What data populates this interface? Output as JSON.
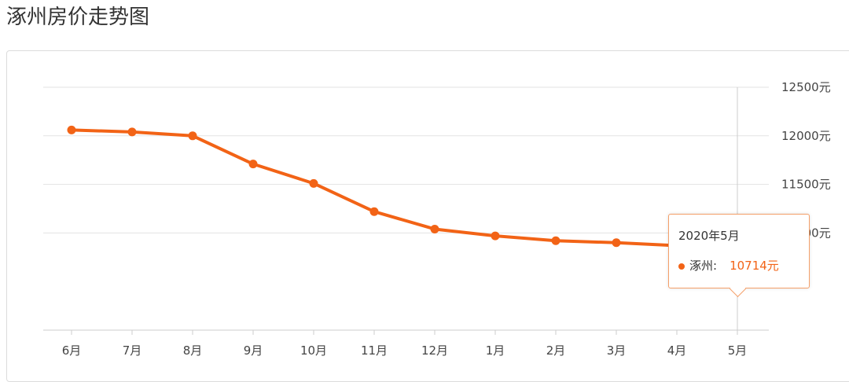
{
  "title": "涿州房价走势图",
  "colors": {
    "line": "#f26316",
    "grid": "#e3e3e3",
    "axis": "#cccccc"
  },
  "chart_data": {
    "type": "line",
    "categories": [
      "6月",
      "7月",
      "8月",
      "9月",
      "10月",
      "11月",
      "12月",
      "1月",
      "2月",
      "3月",
      "4月",
      "5月"
    ],
    "series": [
      {
        "name": "涿州",
        "values": [
          12060,
          12040,
          12000,
          11710,
          11510,
          11220,
          11040,
          10970,
          10920,
          10900,
          10870,
          10714
        ]
      }
    ],
    "ylim": [
      10000,
      12500
    ],
    "yticks": [
      "12500元",
      "12000元",
      "11500元",
      "11000元"
    ],
    "ytick_values": [
      12500,
      12000,
      11500,
      11000
    ],
    "grid": true,
    "axis_position": "right"
  },
  "tooltip": {
    "date": "2020年5月",
    "series": "涿州:",
    "value": "10714元"
  }
}
